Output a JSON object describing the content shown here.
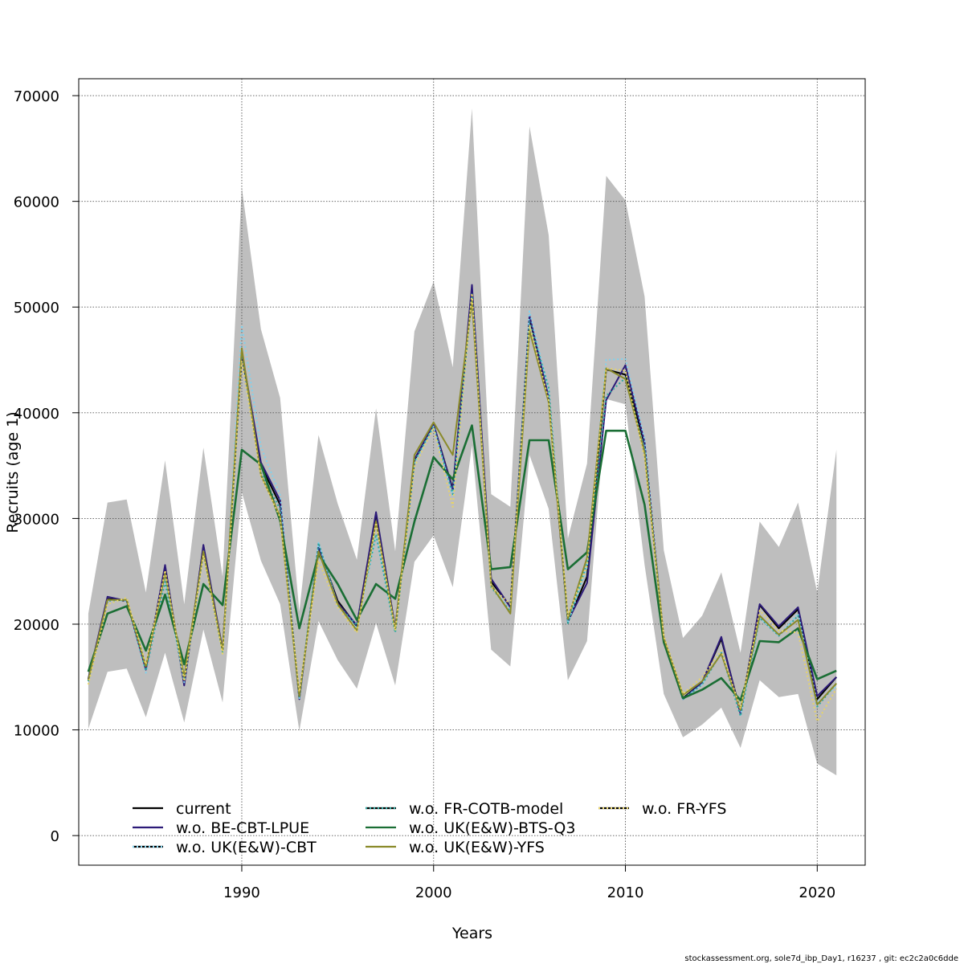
{
  "chart_data": {
    "type": "line",
    "xlabel": "Years",
    "ylabel": "Recruits (age 1)",
    "xlim": [
      1981.5,
      2022.5
    ],
    "ylim": [
      -2800,
      71600
    ],
    "x_ticks": [
      1990,
      2000,
      2010,
      2020
    ],
    "y_ticks": [
      0,
      10000,
      20000,
      30000,
      40000,
      50000,
      60000,
      70000
    ],
    "grid": true,
    "grid_style": "dotted",
    "legend_placement": "bottom-left",
    "x": [
      1982,
      1983,
      1984,
      1985,
      1986,
      1987,
      1988,
      1989,
      1990,
      1991,
      1992,
      1993,
      1994,
      1995,
      1996,
      1997,
      1998,
      1999,
      2000,
      2001,
      2002,
      2003,
      2004,
      2005,
      2006,
      2007,
      2008,
      2009,
      2010,
      2011,
      2012,
      2013,
      2014,
      2015,
      2016,
      2017,
      2018,
      2019,
      2020,
      2021
    ],
    "confidence_band": {
      "color": "#bebebe",
      "lower": [
        10100,
        15500,
        15800,
        11200,
        17300,
        10700,
        19500,
        12600,
        32500,
        26000,
        21900,
        9900,
        20300,
        16600,
        13900,
        20100,
        14200,
        25900,
        28400,
        23500,
        36900,
        17600,
        16000,
        36000,
        30900,
        14700,
        18400,
        41300,
        40800,
        25600,
        13400,
        9300,
        10500,
        12100,
        8300,
        14700,
        13100,
        13400,
        6800,
        5700
      ],
      "upper": [
        21000,
        31500,
        31800,
        23000,
        35500,
        21900,
        36700,
        24500,
        61300,
        47900,
        41400,
        21200,
        37900,
        31400,
        26100,
        40400,
        26900,
        47700,
        52400,
        44300,
        68800,
        32300,
        31100,
        67100,
        56800,
        28100,
        35200,
        62400,
        60100,
        51000,
        27000,
        18700,
        20800,
        24900,
        17300,
        29700,
        27300,
        31500,
        23000,
        36500
      ]
    },
    "series": [
      {
        "name": "current",
        "color": "#000000",
        "dash": "solid",
        "values": [
          14800,
          22400,
          22200,
          15800,
          25400,
          14300,
          27400,
          17500,
          45500,
          35000,
          31300,
          13000,
          27300,
          22200,
          19800,
          30400,
          19600,
          35500,
          38900,
          32800,
          51700,
          24000,
          21700,
          49000,
          41300,
          20200,
          24500,
          44100,
          43600,
          37000,
          18600,
          13000,
          14500,
          18600,
          11700,
          21800,
          19600,
          21400,
          12900,
          15000
        ]
      },
      {
        "name": "w.o. BE-CBT-LPUE",
        "color": "#2c1a78",
        "dash": "solid",
        "values": [
          14800,
          22600,
          22200,
          15700,
          25600,
          14200,
          27500,
          17600,
          45700,
          35300,
          31700,
          12900,
          27400,
          22000,
          19900,
          30600,
          19600,
          35600,
          38900,
          32700,
          52100,
          24300,
          21600,
          49200,
          41400,
          20300,
          23900,
          41200,
          44500,
          37200,
          18500,
          12900,
          14500,
          18800,
          11500,
          21900,
          19800,
          21600,
          13200,
          15000
        ]
      },
      {
        "name": "w.o. UK(E&W)-CBT",
        "color": "#7fd2ee",
        "dash": "dotted",
        "values": [
          14600,
          22300,
          22200,
          15400,
          24300,
          14500,
          26900,
          17300,
          48300,
          36800,
          32200,
          13000,
          27700,
          21800,
          19600,
          28400,
          19300,
          35200,
          38700,
          32200,
          51000,
          23700,
          21300,
          49600,
          42100,
          20100,
          25400,
          45000,
          45100,
          37500,
          18400,
          12900,
          14300,
          17400,
          11400,
          20600,
          18900,
          21000,
          12600,
          14100
        ]
      },
      {
        "name": "w.o. FR-COTB-model",
        "color": "#2aa6a0",
        "dash": "dotted",
        "values": [
          14600,
          22200,
          22300,
          15600,
          24000,
          14800,
          26800,
          17300,
          45800,
          34300,
          30900,
          13000,
          27700,
          21800,
          19900,
          28500,
          19200,
          35400,
          38700,
          32300,
          51200,
          23500,
          21200,
          48600,
          42400,
          20100,
          25800,
          41600,
          43300,
          36600,
          18300,
          12900,
          14300,
          17300,
          11300,
          20600,
          18900,
          20800,
          12200,
          14400
        ]
      },
      {
        "name": "w.o. UK(E&W)-BTS-Q3",
        "color": "#1a6e34",
        "dash": "solid",
        "values": [
          15500,
          21000,
          21700,
          17500,
          22800,
          16200,
          23800,
          21800,
          36500,
          35100,
          29800,
          19600,
          26600,
          23800,
          20400,
          23800,
          22400,
          29700,
          35800,
          33700,
          38800,
          25200,
          25400,
          37400,
          37400,
          25200,
          26800,
          38300,
          38300,
          31300,
          18300,
          13000,
          13800,
          14900,
          12800,
          18400,
          18300,
          19600,
          14800,
          15600
        ]
      },
      {
        "name": "w.o. UK(E&W)-YFS",
        "color": "#8a8a2a",
        "dash": "solid",
        "values": [
          14700,
          22300,
          22300,
          16000,
          24800,
          15000,
          26900,
          17500,
          46100,
          34100,
          30200,
          13200,
          26900,
          21900,
          19400,
          29700,
          19500,
          36000,
          39100,
          36000,
          50600,
          23700,
          21000,
          47800,
          41000,
          20500,
          26300,
          44200,
          43200,
          36200,
          18700,
          13300,
          14600,
          17200,
          11900,
          20800,
          19000,
          20400,
          12400,
          14400
        ]
      },
      {
        "name": "w.o. FR-YFS",
        "color": "#e8d468",
        "dash": "dotted",
        "values": [
          14300,
          21900,
          22500,
          16200,
          25100,
          14600,
          26500,
          17200,
          44900,
          34000,
          30100,
          13600,
          26000,
          21600,
          19200,
          29600,
          19400,
          34900,
          38600,
          31100,
          51300,
          23500,
          21900,
          48300,
          41200,
          20800,
          25500,
          44200,
          44000,
          35700,
          18900,
          13400,
          15000,
          17500,
          12000,
          21300,
          19400,
          19200,
          10800,
          13900
        ]
      }
    ]
  },
  "footer_text": "stockassessment.org, sole7d_ibp_Day1, r16237 , git: ec2c2a0c6dde"
}
